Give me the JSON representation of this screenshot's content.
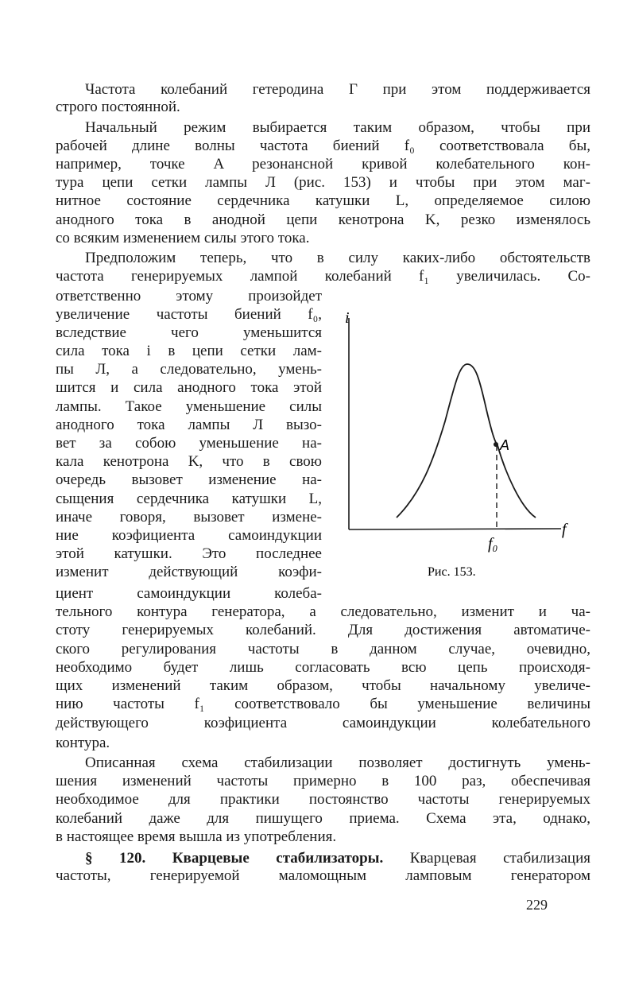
{
  "page": {
    "paragraphs": [
      {
        "lines": [
          "Частота колебаний гетеродина Г при этом поддерживается",
          "строго постоянной."
        ]
      },
      {
        "lines": [
          "Начальный режим выбирается таким образом, чтобы при",
          "рабочей длине волны частота биений f₀ соответствовала бы,",
          "например, точке A резонансной кривой колебательного кон-",
          "тура цепи сетки лампы Л (рис. 153) и чтобы при этом маг-",
          "нитное состояние сердечника катушки L, определяемое силою",
          "анодного тока в анодной цепи кенотрона K, резко изменялось",
          "со всяким изменением силы этого тока."
        ]
      },
      {
        "lines": [
          "Предположим теперь, что в силу каких-либо обстоятельств",
          "частота генерируемых лампой колебаний f₁ увеличилась. Со-",
          "ответственно этому произойдет",
          "увеличение частоты биений f₀,",
          "вследствие чего уменьшится",
          "сила тока i в цепи сетки лам-",
          "пы Л, а следовательно, умень-",
          "шится и сила анодного тока этой",
          "лампы. Такое уменьшение силы",
          "анодного тока лампы Л вызо-",
          "вет за собою уменьшение на-",
          "кала кенотрона K, что в свою",
          "очередь вызовет изменение на-",
          "сыщения сердечника катушки L,",
          "иначе говоря, вызовет измене-",
          "ние коэфициента самоиндукции",
          "этой катушки. Это последнее",
          "изменит действующий коэфи-",
          "циент самоиндукции колеба-",
          "тельного контура генератора, а следовательно, изменит и ча-",
          "стоту генерируемых колебаний. Для достижения автоматиче-",
          "ского регулирования частоты в данном случае, очевидно,",
          "необходимо будет лишь согласовать всю цепь происходя-",
          "щих изменений таким образом, чтобы начальному увеличе-",
          "нию частоты f₁ соответствовало бы уменьшение величины",
          "действующего коэфициента самоиндукции колебательного",
          "контура."
        ]
      },
      {
        "lines": [
          "Описанная схема стабилизации позволяет достигнуть умень-",
          "шения изменений частоты примерно в 100 раз, обеспечивая",
          "необходимое для практики постоянство частоты генерируемых",
          "колебаний даже для пишущего приема. Схема эта, однако,",
          "в настоящее время вышла из употребления."
        ]
      },
      {
        "heading": "§ 120. Кварцевые стабилизаторы.",
        "lines": [
          " Кварцевая стабилизация",
          "частоты, генерируемой маломощным ламповым генератором"
        ]
      }
    ],
    "figure": {
      "y_axis_label": "i",
      "x_axis_label": "f",
      "point_label": "A",
      "tick_label": "f₀",
      "caption": "Рис. 153."
    },
    "page_number": "229"
  }
}
